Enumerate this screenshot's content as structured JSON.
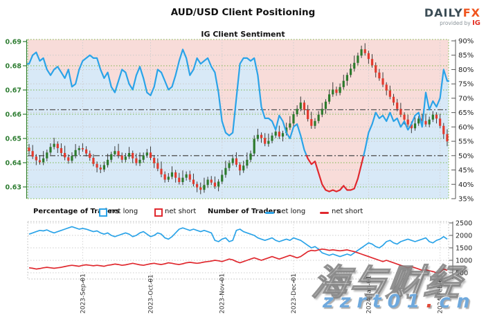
{
  "header": {
    "title": "AUD/USD Client Positioning",
    "subtitle": "IG Client Sentiment",
    "logo": {
      "brand_primary": "DAILY",
      "brand_accent": "FX",
      "tagline": "provided by",
      "provider": "IG"
    }
  },
  "legend": {
    "percentage_group": "Percentage of Traders",
    "number_group": "Number of Traders",
    "net_long": "net long",
    "net_short": "net short"
  },
  "watermark": {
    "chinese": "海与财经",
    "url_left": "zzrt01",
    "url_dot": ".",
    "url_right": "cn"
  },
  "colors": {
    "net_long_line": "#2aa3e8",
    "net_short_line": "#e0282e",
    "candle_up": "#2c7a2c",
    "candle_down": "#e23a2e",
    "wick": "#3a3a3a",
    "price_axis": "#2e7d32",
    "pct_axis": "#222222",
    "fill_above_line": "#f8dcd9",
    "fill_below_line": "#d8e9f7",
    "grid_green": "#7ab648",
    "grid_gray": "#c9c9c9",
    "refline": "#555555",
    "watermark_blue": "#6fa9dd",
    "watermark_dot_red": "#e04b3a",
    "logo_dark": "#3c4d56",
    "logo_orange": "#f0541e",
    "logo_ig_red": "#e43125"
  },
  "chart_data": [
    {
      "type": "mixed-candlestick-line",
      "title": "IG Client Sentiment",
      "left_axis": {
        "label": "AUD/USD price",
        "ticks": [
          0.69,
          0.68,
          0.67,
          0.66,
          0.65,
          0.64,
          0.63
        ]
      },
      "right_axis": {
        "label": "percent of traders net-long",
        "unit": "%",
        "ticks": [
          90,
          85,
          80,
          75,
          70,
          65,
          60,
          55,
          50,
          45,
          40,
          35
        ]
      },
      "x_month_ticks": [
        {
          "label": "2023-Sep-01",
          "index": 15
        },
        {
          "label": "2023-Oct-01",
          "index": 34
        },
        {
          "label": "2023-Nov-01",
          "index": 54
        },
        {
          "label": "2023-Dec-01",
          "index": 74
        },
        {
          "label": "2024-Jan-01",
          "index": 95
        },
        {
          "label": "2024-Feb-01",
          "index": 115
        }
      ],
      "reference_lines_pct": [
        66,
        50
      ],
      "sentiment_threshold_pct": 50,
      "sentiment_net_long_pct": [
        82,
        85,
        86,
        83,
        84,
        80,
        78,
        80,
        81,
        79,
        77,
        80,
        74,
        75,
        80,
        83,
        84,
        85,
        84,
        84,
        80,
        77,
        79,
        74,
        72,
        76,
        80,
        79,
        75,
        73,
        78,
        81,
        77,
        72,
        71,
        74,
        80,
        79,
        76,
        73,
        74,
        78,
        83,
        87,
        84,
        78,
        80,
        84,
        82,
        83,
        84,
        81,
        79,
        72,
        62,
        58,
        57,
        58,
        70,
        82,
        84,
        84,
        83,
        84,
        78,
        67,
        63,
        63,
        62,
        59,
        64,
        62,
        58,
        56,
        60,
        61,
        57,
        52,
        49,
        47,
        48,
        44,
        40,
        38,
        37.5,
        38,
        37.5,
        38,
        39.5,
        38,
        38,
        38.5,
        42,
        47,
        52,
        58,
        61,
        65,
        63,
        64,
        62,
        65,
        62,
        63,
        60,
        62,
        59,
        61,
        64,
        65,
        60,
        72,
        66,
        69,
        67,
        70,
        80,
        76
      ],
      "candles_ohlc": [
        [
          0.6462,
          0.6477,
          0.6433,
          0.6448
        ],
        [
          0.6448,
          0.6473,
          0.6415,
          0.6425
        ],
        [
          0.6425,
          0.6435,
          0.639,
          0.641
        ],
        [
          0.641,
          0.643,
          0.6392,
          0.6402
        ],
        [
          0.6402,
          0.6448,
          0.639,
          0.6418
        ],
        [
          0.6418,
          0.6454,
          0.6406,
          0.6442
        ],
        [
          0.6442,
          0.648,
          0.6432,
          0.6465
        ],
        [
          0.6465,
          0.6503,
          0.6455,
          0.6478
        ],
        [
          0.6478,
          0.6488,
          0.644,
          0.646
        ],
        [
          0.646,
          0.648,
          0.643,
          0.644
        ],
        [
          0.644,
          0.647,
          0.641,
          0.6422
        ],
        [
          0.6422,
          0.6434,
          0.6396,
          0.6408
        ],
        [
          0.6408,
          0.6443,
          0.6398,
          0.6428
        ],
        [
          0.6428,
          0.6477,
          0.6418,
          0.6452
        ],
        [
          0.6452,
          0.647,
          0.6432,
          0.646
        ],
        [
          0.646,
          0.648,
          0.6445,
          0.6455
        ],
        [
          0.6455,
          0.6468,
          0.6426,
          0.6438
        ],
        [
          0.6438,
          0.645,
          0.6408,
          0.642
        ],
        [
          0.642,
          0.6435,
          0.6385,
          0.6395
        ],
        [
          0.6395,
          0.6405,
          0.636,
          0.638
        ],
        [
          0.638,
          0.6392,
          0.6357,
          0.6372
        ],
        [
          0.6372,
          0.6405,
          0.6362,
          0.639
        ],
        [
          0.639,
          0.6437,
          0.638,
          0.6412
        ],
        [
          0.6412,
          0.6445,
          0.6402,
          0.6435
        ],
        [
          0.6435,
          0.6468,
          0.6425,
          0.6448
        ],
        [
          0.6448,
          0.6478,
          0.6418,
          0.643
        ],
        [
          0.643,
          0.6442,
          0.64,
          0.6412
        ],
        [
          0.6412,
          0.644,
          0.6402,
          0.6425
        ],
        [
          0.6425,
          0.6465,
          0.6415,
          0.644
        ],
        [
          0.644,
          0.645,
          0.6398,
          0.6418
        ],
        [
          0.6418,
          0.6438,
          0.6388,
          0.6398
        ],
        [
          0.6398,
          0.6442,
          0.6386,
          0.6412
        ],
        [
          0.6412,
          0.6442,
          0.64,
          0.643
        ],
        [
          0.643,
          0.6457,
          0.642,
          0.6442
        ],
        [
          0.6442,
          0.6467,
          0.641,
          0.642
        ],
        [
          0.642,
          0.643,
          0.6378,
          0.6398
        ],
        [
          0.6398,
          0.6418,
          0.6365,
          0.6375
        ],
        [
          0.6375,
          0.6405,
          0.634,
          0.6352
        ],
        [
          0.6352,
          0.6364,
          0.6318,
          0.633
        ],
        [
          0.633,
          0.6357,
          0.632,
          0.6342
        ],
        [
          0.6342,
          0.6385,
          0.6332,
          0.636
        ],
        [
          0.636,
          0.637,
          0.6318,
          0.6338
        ],
        [
          0.6338,
          0.6358,
          0.631,
          0.632
        ],
        [
          0.632,
          0.6368,
          0.6308,
          0.6338
        ],
        [
          0.6338,
          0.6364,
          0.6326,
          0.6352
        ],
        [
          0.6352,
          0.6367,
          0.632,
          0.633
        ],
        [
          0.633,
          0.6355,
          0.6302,
          0.6312
        ],
        [
          0.6312,
          0.6322,
          0.6278,
          0.6298
        ],
        [
          0.6298,
          0.6318,
          0.627,
          0.6288
        ],
        [
          0.6288,
          0.6338,
          0.6276,
          0.6308
        ],
        [
          0.6308,
          0.6342,
          0.6296,
          0.633
        ],
        [
          0.633,
          0.6345,
          0.6308,
          0.6318
        ],
        [
          0.6318,
          0.6343,
          0.6292,
          0.6302
        ],
        [
          0.6302,
          0.6332,
          0.6282,
          0.6322
        ],
        [
          0.6322,
          0.637,
          0.6312,
          0.635
        ],
        [
          0.635,
          0.6408,
          0.6338,
          0.6378
        ],
        [
          0.6378,
          0.641,
          0.6366,
          0.6398
        ],
        [
          0.6398,
          0.6433,
          0.6388,
          0.6418
        ],
        [
          0.6418,
          0.6443,
          0.6382,
          0.6392
        ],
        [
          0.6392,
          0.6402,
          0.6348,
          0.6368
        ],
        [
          0.6368,
          0.6408,
          0.6358,
          0.6388
        ],
        [
          0.6388,
          0.6442,
          0.6376,
          0.6412
        ],
        [
          0.6412,
          0.645,
          0.6402,
          0.6438
        ],
        [
          0.6438,
          0.6513,
          0.6428,
          0.6498
        ],
        [
          0.6498,
          0.654,
          0.6488,
          0.6515
        ],
        [
          0.6515,
          0.6525,
          0.6482,
          0.6502
        ],
        [
          0.6502,
          0.6522,
          0.6468,
          0.6478
        ],
        [
          0.6478,
          0.652,
          0.6466,
          0.649
        ],
        [
          0.649,
          0.6524,
          0.648,
          0.6512
        ],
        [
          0.6512,
          0.6543,
          0.6502,
          0.6528
        ],
        [
          0.6528,
          0.6553,
          0.6498,
          0.6508
        ],
        [
          0.6508,
          0.6532,
          0.6488,
          0.6522
        ],
        [
          0.6522,
          0.6565,
          0.6512,
          0.6545
        ],
        [
          0.6545,
          0.6592,
          0.6535,
          0.6562
        ],
        [
          0.6562,
          0.6612,
          0.6542,
          0.66
        ],
        [
          0.66,
          0.6637,
          0.659,
          0.6622
        ],
        [
          0.6622,
          0.6673,
          0.6612,
          0.6648
        ],
        [
          0.6648,
          0.6658,
          0.6598,
          0.6618
        ],
        [
          0.6618,
          0.6638,
          0.657,
          0.658
        ],
        [
          0.658,
          0.661,
          0.654,
          0.6552
        ],
        [
          0.6552,
          0.6584,
          0.654,
          0.6572
        ],
        [
          0.6572,
          0.6613,
          0.6562,
          0.6598
        ],
        [
          0.6598,
          0.6647,
          0.6588,
          0.6622
        ],
        [
          0.6622,
          0.6662,
          0.6602,
          0.6652
        ],
        [
          0.6652,
          0.6702,
          0.6642,
          0.6682
        ],
        [
          0.6682,
          0.6732,
          0.6672,
          0.6702
        ],
        [
          0.6702,
          0.6714,
          0.6676,
          0.6688
        ],
        [
          0.6688,
          0.6727,
          0.6678,
          0.6712
        ],
        [
          0.6712,
          0.6763,
          0.6702,
          0.6738
        ],
        [
          0.6738,
          0.6772,
          0.6718,
          0.6762
        ],
        [
          0.6762,
          0.6808,
          0.6752,
          0.6788
        ],
        [
          0.6788,
          0.6842,
          0.6776,
          0.6812
        ],
        [
          0.6812,
          0.6854,
          0.6802,
          0.6842
        ],
        [
          0.6842,
          0.6883,
          0.6832,
          0.6868
        ],
        [
          0.6868,
          0.6893,
          0.6842,
          0.6852
        ],
        [
          0.6852,
          0.6862,
          0.6808,
          0.6828
        ],
        [
          0.6828,
          0.6848,
          0.6792,
          0.6802
        ],
        [
          0.6802,
          0.6814,
          0.6752,
          0.6772
        ],
        [
          0.6772,
          0.6787,
          0.6738,
          0.6748
        ],
        [
          0.6748,
          0.6773,
          0.6712,
          0.6722
        ],
        [
          0.6722,
          0.6732,
          0.6678,
          0.6698
        ],
        [
          0.6698,
          0.6718,
          0.6662,
          0.6672
        ],
        [
          0.6672,
          0.6684,
          0.6636,
          0.6648
        ],
        [
          0.6648,
          0.6663,
          0.6612,
          0.6622
        ],
        [
          0.6622,
          0.6647,
          0.6588,
          0.6598
        ],
        [
          0.6598,
          0.6608,
          0.6558,
          0.6578
        ],
        [
          0.6578,
          0.6598,
          0.6548,
          0.6558
        ],
        [
          0.6558,
          0.657,
          0.6522,
          0.6542
        ],
        [
          0.6542,
          0.6587,
          0.6532,
          0.6562
        ],
        [
          0.6562,
          0.6592,
          0.6552,
          0.6582
        ],
        [
          0.6582,
          0.6602,
          0.6562,
          0.6572
        ],
        [
          0.6572,
          0.6602,
          0.6548,
          0.6558
        ],
        [
          0.6558,
          0.659,
          0.6546,
          0.6578
        ],
        [
          0.6578,
          0.6613,
          0.6568,
          0.6598
        ],
        [
          0.6598,
          0.6608,
          0.6562,
          0.6582
        ],
        [
          0.6582,
          0.6602,
          0.6542,
          0.6552
        ],
        [
          0.6552,
          0.6564,
          0.6498,
          0.6518
        ],
        [
          0.6518,
          0.6538,
          0.6468,
          0.6488
        ]
      ]
    },
    {
      "type": "line",
      "title": "Number of Traders",
      "right_axis": {
        "ticks": [
          2500,
          2000,
          1500,
          1000,
          500
        ]
      },
      "series": [
        {
          "name": "net long",
          "values": [
            2050,
            2100,
            2150,
            2200,
            2180,
            2220,
            2150,
            2100,
            2150,
            2200,
            2250,
            2300,
            2350,
            2300,
            2250,
            2280,
            2250,
            2200,
            2150,
            2180,
            2100,
            2050,
            2100,
            2000,
            1950,
            2000,
            2050,
            2100,
            2050,
            1950,
            2000,
            2100,
            2150,
            2050,
            1950,
            2000,
            2100,
            2050,
            1900,
            1850,
            1950,
            2100,
            2250,
            2300,
            2250,
            2200,
            2250,
            2200,
            2150,
            2200,
            2150,
            2100,
            1800,
            1750,
            1850,
            1900,
            1750,
            1800,
            2200,
            2250,
            2150,
            2100,
            2050,
            2000,
            1900,
            1850,
            1800,
            1850,
            1900,
            1800,
            1750,
            1800,
            1850,
            1800,
            1900,
            1850,
            1800,
            1700,
            1600,
            1500,
            1550,
            1450,
            1300,
            1250,
            1200,
            1250,
            1200,
            1150,
            1200,
            1250,
            1200,
            1300,
            1400,
            1500,
            1600,
            1700,
            1650,
            1550,
            1500,
            1600,
            1750,
            1800,
            1700,
            1650,
            1750,
            1800,
            1850,
            1800,
            1750,
            1800,
            1850,
            1900,
            1750,
            1700,
            1800,
            1850,
            1950,
            1850
          ]
        },
        {
          "name": "net short",
          "values": [
            700,
            680,
            650,
            670,
            700,
            720,
            700,
            680,
            700,
            720,
            750,
            780,
            800,
            780,
            760,
            800,
            820,
            800,
            780,
            800,
            780,
            760,
            800,
            820,
            850,
            830,
            800,
            820,
            850,
            880,
            850,
            820,
            800,
            830,
            860,
            880,
            850,
            830,
            860,
            900,
            880,
            850,
            830,
            860,
            900,
            920,
            900,
            880,
            900,
            930,
            950,
            970,
            1000,
            980,
            950,
            1000,
            1050,
            1020,
            950,
            900,
            950,
            1000,
            1050,
            1100,
            1050,
            1000,
            1050,
            1100,
            1150,
            1100,
            1050,
            1100,
            1150,
            1200,
            1150,
            1100,
            1150,
            1250,
            1350,
            1400,
            1380,
            1420,
            1450,
            1430,
            1400,
            1420,
            1400,
            1380,
            1400,
            1420,
            1380,
            1350,
            1300,
            1250,
            1200,
            1150,
            1100,
            1050,
            1000,
            950,
            1000,
            950,
            900,
            850,
            800,
            750,
            700,
            750,
            700,
            650,
            600,
            620,
            580,
            550,
            500,
            520,
            650,
            600
          ]
        }
      ]
    }
  ]
}
